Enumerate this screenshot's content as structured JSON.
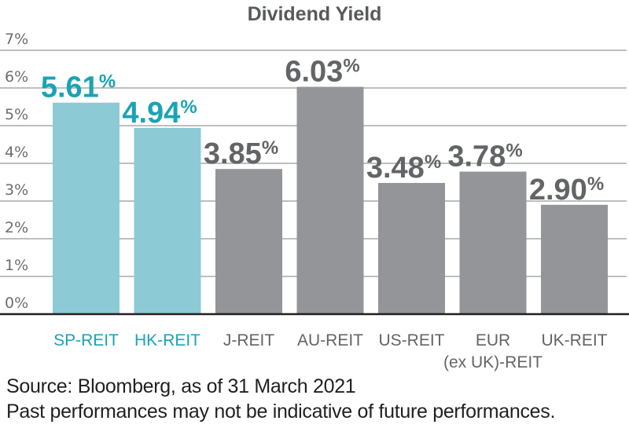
{
  "chart_data": {
    "type": "bar",
    "title": "Dividend Yield",
    "xlabel": "",
    "ylabel": "",
    "ylim": [
      0,
      7
    ],
    "yticks": [
      0,
      1,
      2,
      3,
      4,
      5,
      6,
      7
    ],
    "ytick_labels": [
      "0%",
      "1%",
      "2%",
      "3%",
      "4%",
      "5%",
      "6%",
      "7%"
    ],
    "grid": true,
    "legend": "none",
    "categories": [
      "SP-REIT",
      "HK-REIT",
      "J-REIT",
      "AU-REIT",
      "US-REIT",
      "EUR (ex UK)-REIT",
      "UK-REIT"
    ],
    "category_label_lines": [
      [
        "SP-REIT"
      ],
      [
        "HK-REIT"
      ],
      [
        "J-REIT"
      ],
      [
        "AU-REIT"
      ],
      [
        "US-REIT"
      ],
      [
        "EUR",
        "(ex UK)-REIT"
      ],
      [
        "UK-REIT"
      ]
    ],
    "values": [
      5.61,
      4.94,
      3.85,
      6.03,
      3.48,
      3.78,
      2.9
    ],
    "data_labels": [
      "5.61",
      "4.94",
      "3.85",
      "6.03",
      "3.48",
      "3.78",
      "2.90"
    ],
    "data_label_suffix": "%",
    "highlighted": [
      true,
      true,
      false,
      false,
      false,
      false,
      false
    ]
  },
  "colors": {
    "highlight_bar": "#8ccad6",
    "highlight_text": "#1ba3b5",
    "default_bar": "#939598",
    "default_text": "#636466",
    "grid": "#bcbec0",
    "axis": "#231f20"
  },
  "footnotes": {
    "source": "Source: Bloomberg, as of 31 March 2021",
    "disclaimer": "Past performances may not be indicative of future performances."
  }
}
